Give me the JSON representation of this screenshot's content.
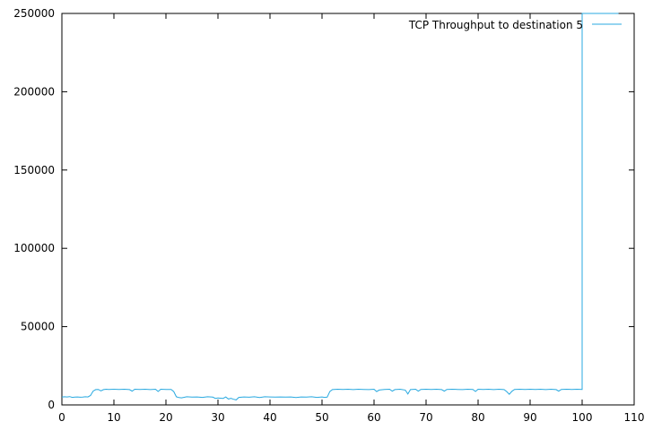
{
  "chart_data": {
    "type": "line",
    "title": "",
    "xlabel": "",
    "ylabel": "",
    "xlim": [
      0,
      110
    ],
    "ylim": [
      0,
      250000
    ],
    "x_ticks": [
      0,
      10,
      20,
      30,
      40,
      50,
      60,
      70,
      80,
      90,
      100,
      110
    ],
    "x_tick_labels": [
      "0",
      "10",
      "20",
      "30",
      "40",
      "50",
      "60",
      "70",
      "80",
      "90",
      "100",
      "110"
    ],
    "y_ticks": [
      0,
      50000,
      100000,
      150000,
      200000,
      250000
    ],
    "y_tick_labels": [
      "0",
      "50000",
      "100000",
      "150000",
      "200000",
      "250000"
    ],
    "grid": false,
    "legend_position": "top-right",
    "series": [
      {
        "name": "TCP Throughput to destination 5",
        "color": "#29a9e0",
        "x": [
          0,
          0.5,
          1,
          1.5,
          2,
          2.5,
          3,
          3.5,
          4,
          4.5,
          5,
          5.5,
          6,
          6.5,
          7,
          7.5,
          8,
          8.5,
          9,
          10,
          11,
          12,
          13,
          13.5,
          14,
          15,
          16,
          17,
          18,
          18.5,
          19,
          20,
          21,
          21.5,
          22,
          22.5,
          23,
          24,
          25,
          26,
          27,
          28,
          29,
          29.5,
          30,
          31,
          31.5,
          32,
          32.5,
          33,
          33.5,
          34,
          35,
          36,
          37,
          38,
          39,
          40,
          41,
          42,
          43,
          44,
          45,
          46,
          47,
          48,
          49,
          50,
          50.5,
          51,
          51.5,
          52,
          53,
          54,
          55,
          56,
          57,
          58,
          59,
          60,
          60.5,
          61,
          62,
          63,
          63.5,
          64,
          65,
          66,
          66.5,
          67,
          68,
          68.5,
          69,
          70,
          71,
          72,
          73,
          73.5,
          74,
          75,
          76,
          77,
          78,
          79,
          79.5,
          80,
          81,
          82,
          83,
          84,
          85,
          85.5,
          86,
          86.5,
          87,
          88,
          89,
          90,
          91,
          92,
          93,
          94,
          95,
          95.5,
          96,
          97,
          98,
          99,
          100,
          100,
          107
        ],
        "values": [
          5000,
          5200,
          5100,
          5300,
          4800,
          5000,
          5100,
          4900,
          5000,
          5200,
          5100,
          6000,
          8800,
          9800,
          9900,
          9000,
          9800,
          10000,
          9900,
          10000,
          9900,
          10000,
          9800,
          8800,
          10000,
          9900,
          10000,
          9800,
          10000,
          8600,
          10000,
          9900,
          9900,
          8500,
          5200,
          4700,
          4500,
          5200,
          5000,
          5100,
          4800,
          5200,
          5000,
          4200,
          4400,
          4200,
          5100,
          3800,
          4200,
          3600,
          3200,
          4800,
          5100,
          4900,
          5200,
          4700,
          5200,
          5100,
          5000,
          5100,
          5000,
          5100,
          4700,
          5100,
          5000,
          5200,
          4800,
          5100,
          4800,
          5000,
          8500,
          9800,
          10000,
          9900,
          10000,
          9800,
          10000,
          9900,
          9800,
          10000,
          8500,
          9500,
          9900,
          10000,
          8800,
          9800,
          10000,
          9500,
          7000,
          9800,
          10000,
          8800,
          9900,
          10000,
          9900,
          10000,
          9800,
          8800,
          9900,
          10000,
          9900,
          9800,
          10000,
          9900,
          8600,
          10000,
          9900,
          10000,
          9800,
          10000,
          9800,
          8500,
          6800,
          8700,
          9900,
          10000,
          9900,
          10000,
          9900,
          10000,
          9800,
          10000,
          9800,
          8800,
          9900,
          10000,
          9900,
          10000,
          9900,
          250000,
          250000
        ]
      }
    ]
  }
}
